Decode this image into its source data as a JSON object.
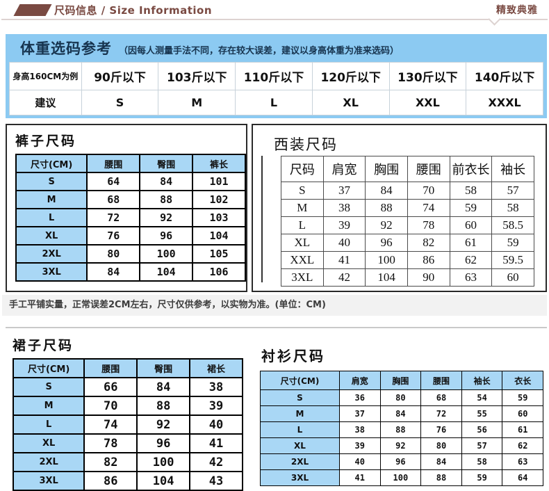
{
  "header": {
    "title": "尺码信息 / Size Information",
    "tagline": "精致典雅"
  },
  "weight_section": {
    "title": "体重选码参考",
    "subtitle": "（因每人测量手法不同，存在较大误差，建议以身高体重为准来选码）",
    "table": {
      "rows": [
        [
          "身高160CM为例",
          "90斤以下",
          "103斤以下",
          "110斤以下",
          "120斤以下",
          "130斤以下",
          "140斤以下"
        ],
        [
          "建议",
          "S",
          "M",
          "L",
          "XL",
          "XXL",
          "XXXL"
        ]
      ]
    }
  },
  "pants": {
    "title": "裤子尺码",
    "table": {
      "headers": [
        "尺寸(CM)",
        "腰围",
        "臀围",
        "裤长"
      ],
      "rows": [
        [
          "S",
          "64",
          "84",
          "101"
        ],
        [
          "M",
          "68",
          "88",
          "102"
        ],
        [
          "L",
          "72",
          "92",
          "103"
        ],
        [
          "XL",
          "76",
          "96",
          "104"
        ],
        [
          "2XL",
          "80",
          "100",
          "105"
        ],
        [
          "3XL",
          "84",
          "104",
          "106"
        ]
      ]
    }
  },
  "suit": {
    "title": "西装尺码",
    "table": {
      "headers": [
        "尺码",
        "肩宽",
        "胸围",
        "腰围",
        "前衣长",
        "袖长"
      ],
      "rows": [
        [
          "S",
          "37",
          "84",
          "70",
          "58",
          "57"
        ],
        [
          "M",
          "38",
          "88",
          "74",
          "59",
          "58"
        ],
        [
          "L",
          "39",
          "92",
          "78",
          "60",
          "58.5"
        ],
        [
          "XL",
          "40",
          "96",
          "82",
          "61",
          "59"
        ],
        [
          "XXL",
          "41",
          "100",
          "86",
          "62",
          "59.5"
        ],
        [
          "3XL",
          "42",
          "104",
          "90",
          "63",
          "60"
        ]
      ]
    }
  },
  "note": "手工平铺实量，正常误差2CM左右，尺寸仅供参考，以实物为准。(单位：CM)",
  "skirt": {
    "title": "裙子尺码",
    "table": {
      "headers": [
        "尺寸(CM)",
        "腰围",
        "臀围",
        "裙长"
      ],
      "rows": [
        [
          "S",
          "66",
          "84",
          "38"
        ],
        [
          "M",
          "70",
          "88",
          "39"
        ],
        [
          "L",
          "74",
          "92",
          "40"
        ],
        [
          "XL",
          "78",
          "96",
          "41"
        ],
        [
          "2XL",
          "82",
          "100",
          "42"
        ],
        [
          "3XL",
          "86",
          "104",
          "43"
        ]
      ]
    }
  },
  "shirt": {
    "title": "衬衫尺码",
    "table": {
      "headers": [
        "尺寸(CM)",
        "肩宽",
        "胸围",
        "腰围",
        "袖长",
        "衣长"
      ],
      "rows": [
        [
          "S",
          "36",
          "80",
          "68",
          "54",
          "59"
        ],
        [
          "M",
          "37",
          "84",
          "72",
          "55",
          "60"
        ],
        [
          "L",
          "38",
          "88",
          "76",
          "56",
          "61"
        ],
        [
          "XL",
          "39",
          "92",
          "80",
          "57",
          "62"
        ],
        [
          "2XL",
          "40",
          "96",
          "84",
          "58",
          "63"
        ],
        [
          "3XL",
          "41",
          "100",
          "88",
          "59",
          "64"
        ]
      ]
    }
  },
  "colors": {
    "accent_maroon": "#7a4a42",
    "banner_blue": "#8ccaf2",
    "cell_blue": "#a9d7f5",
    "note_bg": "#f2f2f2"
  }
}
